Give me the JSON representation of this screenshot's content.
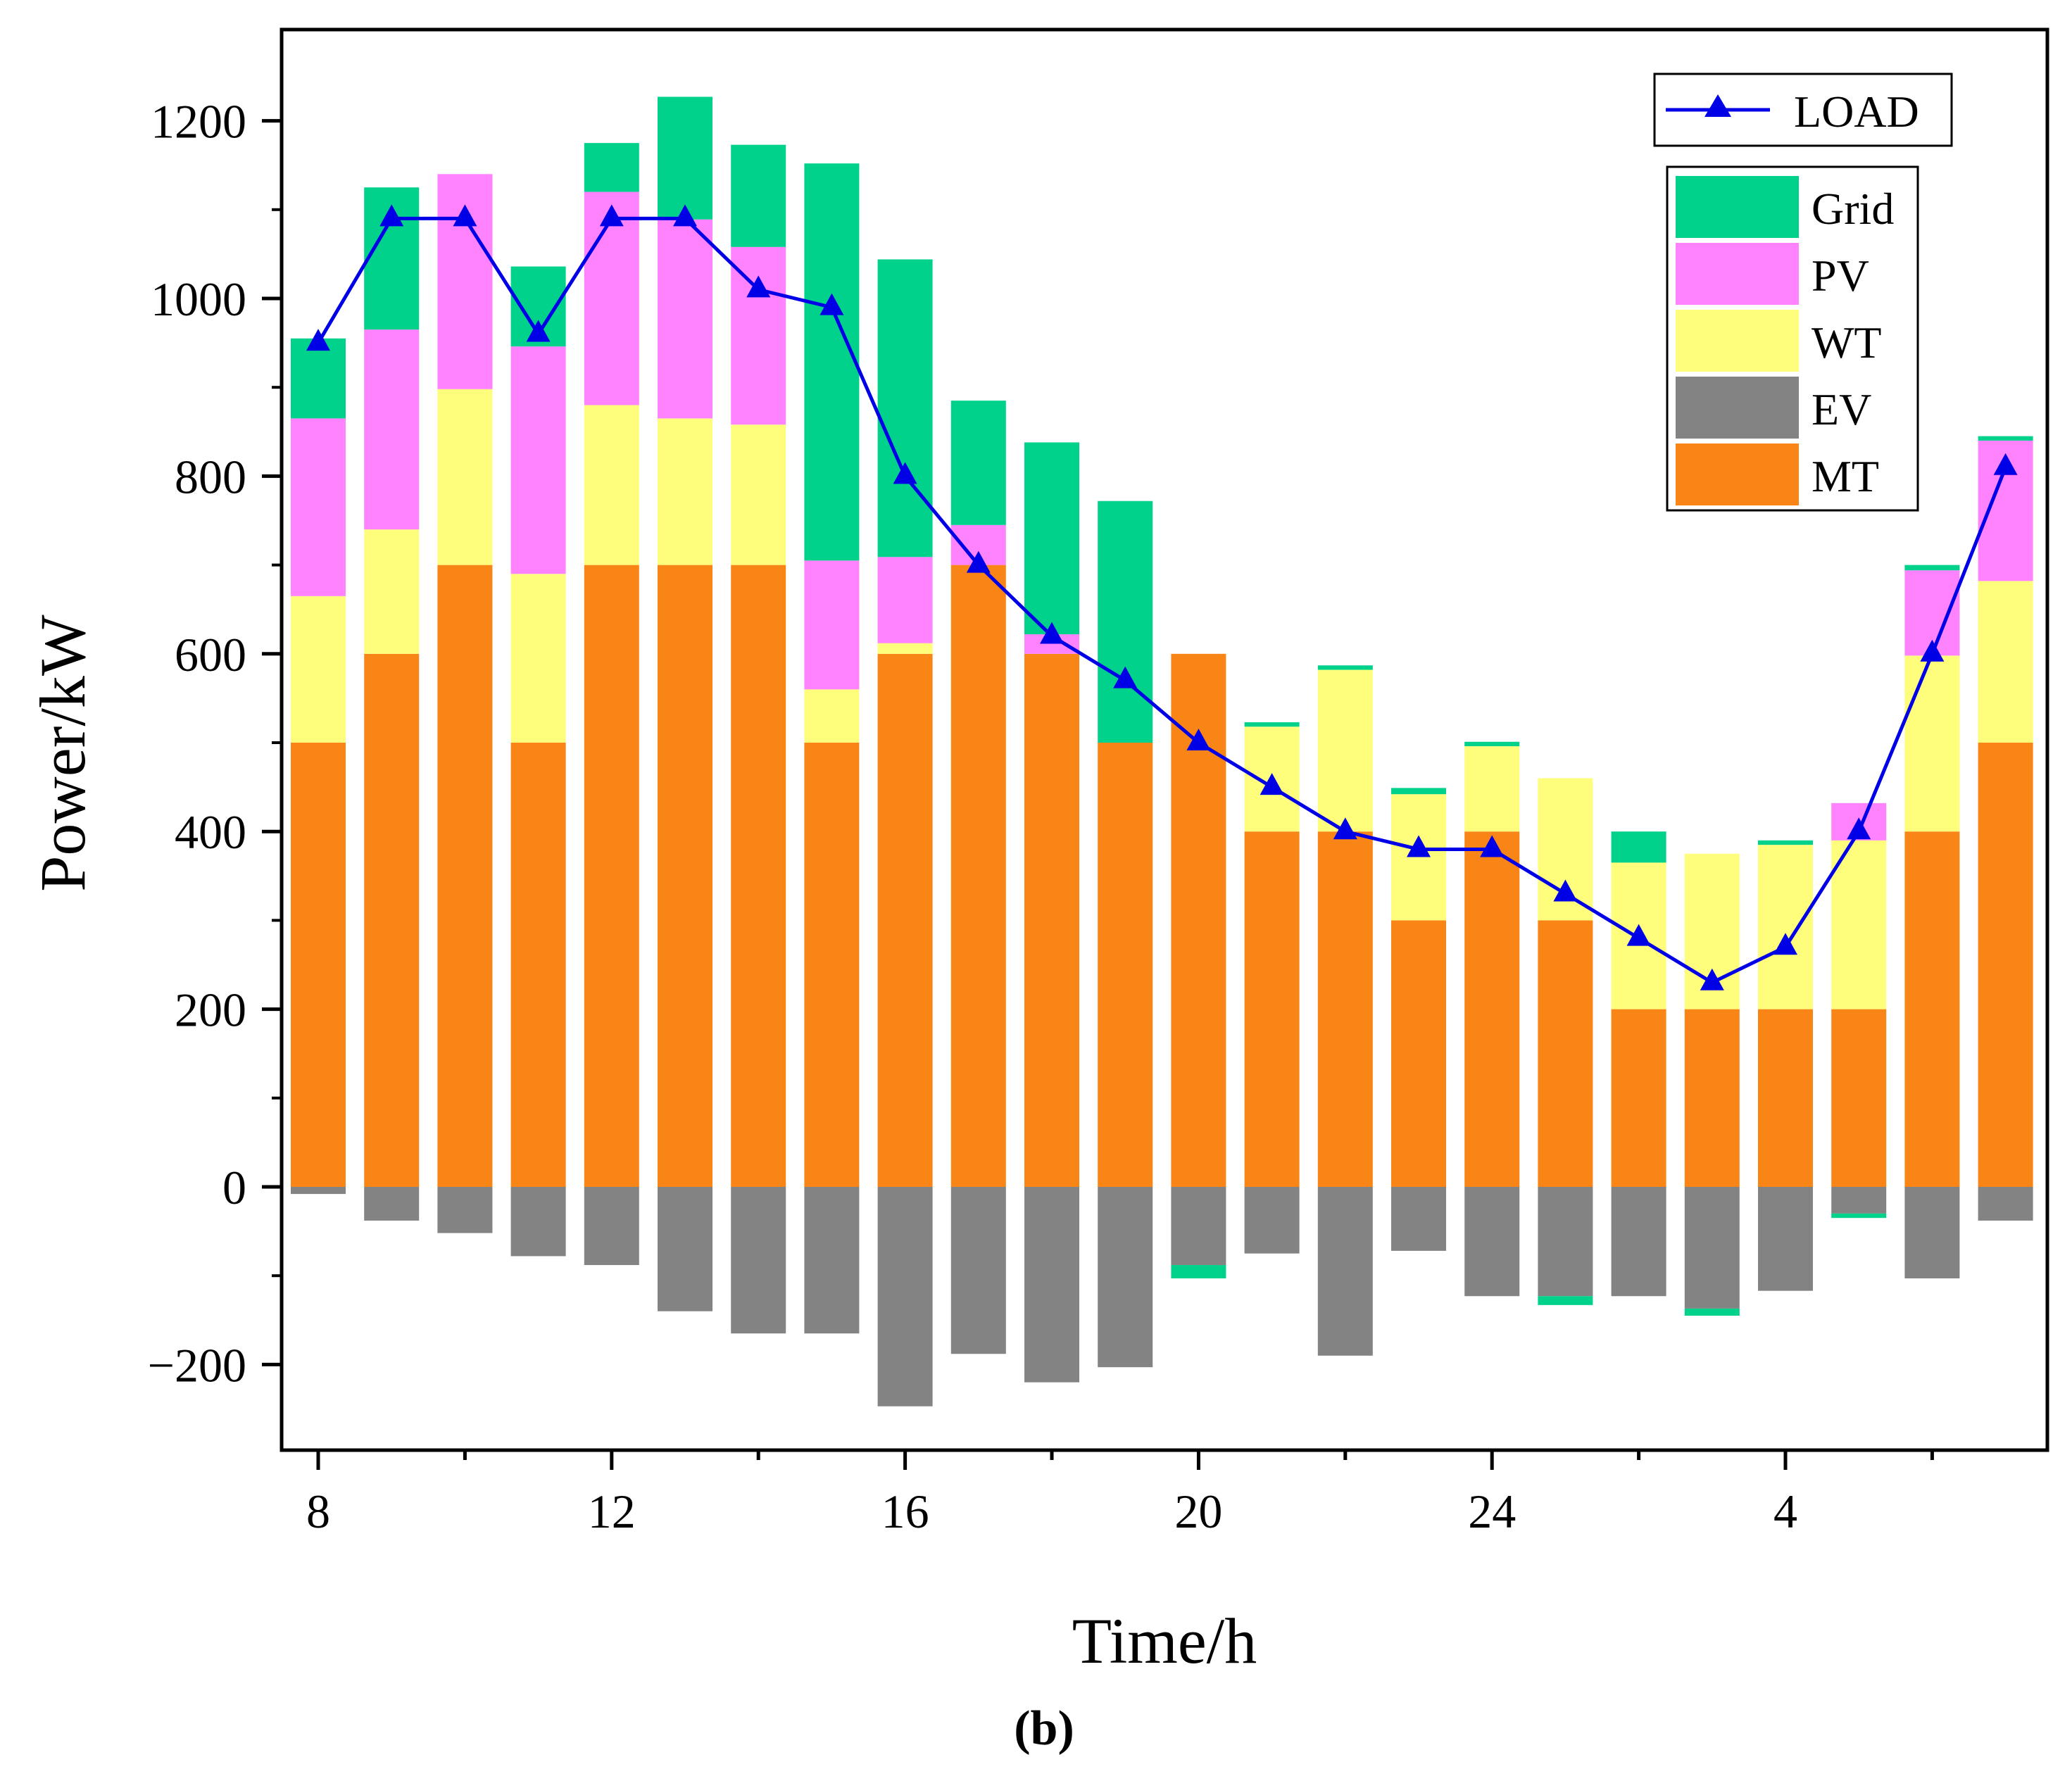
{
  "chart_data": {
    "type": "bar",
    "stacked": true,
    "title": "",
    "caption": "(b)",
    "xlabel": "Time/h",
    "ylabel": "Power/kW",
    "ylim": [
      -300,
      1300
    ],
    "yticks": [
      -200,
      0,
      200,
      400,
      600,
      800,
      1000,
      1200
    ],
    "ytick_labels": [
      "−200",
      "0",
      "200",
      "400",
      "600",
      "800",
      "1000",
      "1200"
    ],
    "xtick_labels": [
      {
        "index": 0,
        "label": "8"
      },
      {
        "index": 4,
        "label": "12"
      },
      {
        "index": 8,
        "label": "16"
      },
      {
        "index": 12,
        "label": "20"
      },
      {
        "index": 16,
        "label": "24"
      },
      {
        "index": 20,
        "label": "4"
      }
    ],
    "hours": [
      8,
      9,
      10,
      11,
      12,
      13,
      14,
      15,
      16,
      17,
      18,
      19,
      20,
      21,
      22,
      23,
      24,
      1,
      2,
      3,
      4,
      5,
      6,
      7
    ],
    "grid": false,
    "series": [
      {
        "name": "MT",
        "color": "#f98516",
        "values": [
          500,
          600,
          700,
          500,
          700,
          700,
          700,
          500,
          600,
          700,
          600,
          500,
          600,
          400,
          400,
          300,
          400,
          300,
          200,
          200,
          200,
          200,
          400,
          500
        ]
      },
      {
        "name": "WT",
        "color": "#fefe7c",
        "values": [
          165,
          140,
          198,
          190,
          180,
          165,
          158,
          60,
          12,
          0,
          0,
          0,
          0,
          118,
          182,
          142,
          96,
          160,
          165,
          175,
          185,
          190,
          198,
          182
        ]
      },
      {
        "name": "PV",
        "color": "#ff82ff",
        "values": [
          200,
          225,
          242,
          256,
          240,
          224,
          200,
          145,
          97,
          45,
          22,
          0,
          0,
          0,
          0,
          0,
          0,
          0,
          0,
          0,
          0,
          42,
          96,
          158
        ]
      },
      {
        "name": "Grid",
        "color": "#00d18b",
        "values": [
          90,
          160,
          0,
          90,
          55,
          138,
          115,
          447,
          335,
          140,
          216,
          272,
          -15,
          5,
          5,
          7,
          5,
          -10,
          35,
          -8,
          5,
          -5,
          6,
          5
        ]
      },
      {
        "name": "EV",
        "color": "#838383",
        "values": [
          -8,
          -38,
          -52,
          -78,
          -88,
          -140,
          -165,
          -165,
          -247,
          -188,
          -220,
          -203,
          -88,
          -75,
          -190,
          -72,
          -123,
          -123,
          -123,
          -137,
          -117,
          -30,
          -103,
          -38
        ]
      }
    ],
    "load": {
      "name": "LOAD",
      "color": "#0000e6",
      "values": [
        950,
        1090,
        1090,
        960,
        1090,
        1090,
        1010,
        990,
        800,
        700,
        620,
        570,
        500,
        450,
        400,
        380,
        380,
        330,
        280,
        230,
        270,
        400,
        600,
        810
      ]
    },
    "legend": {
      "line": "LOAD",
      "bars": [
        "Grid",
        "PV",
        "WT",
        "EV",
        "MT"
      ],
      "placement": "top-right"
    }
  }
}
